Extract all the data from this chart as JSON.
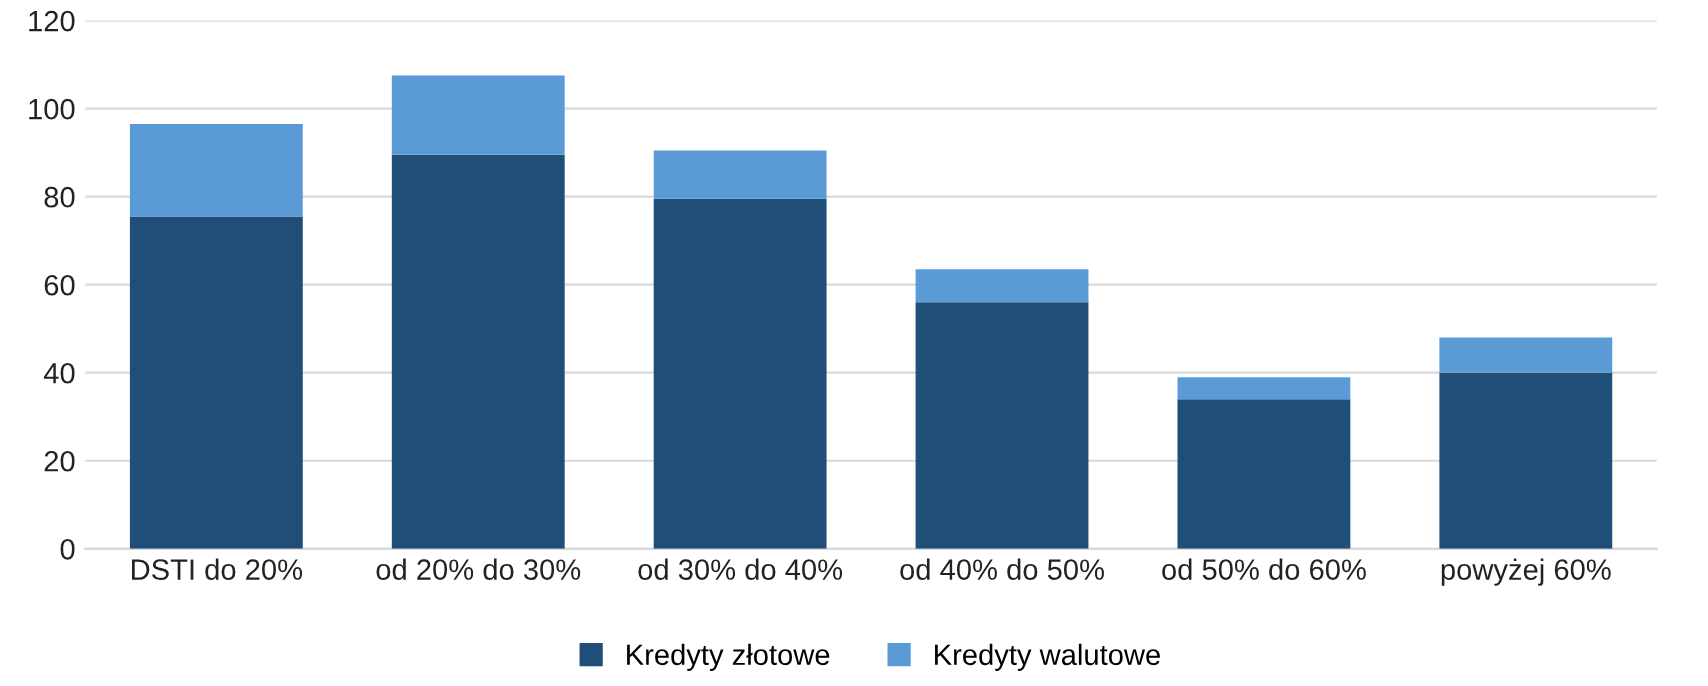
{
  "chart_data": {
    "type": "bar",
    "stacked": true,
    "categories": [
      "DSTI do 20%",
      "od 20% do 30%",
      "od 30% do 40%",
      "od 40% do 50%",
      "od 50% do 60%",
      "powyżej 60%"
    ],
    "series": [
      {
        "name": "Kredyty złotowe",
        "color": "#1f4e79",
        "values": [
          75.5,
          89.5,
          79.5,
          56,
          34,
          40
        ]
      },
      {
        "name": "Kredyty walutowe",
        "color": "#5b9bd5",
        "values": [
          21,
          18,
          11,
          7.5,
          5,
          8
        ]
      }
    ],
    "ylim": [
      0,
      120
    ],
    "yticks": [
      0,
      20,
      40,
      60,
      80,
      100,
      120
    ],
    "grid": "y",
    "legend": "bottom"
  }
}
